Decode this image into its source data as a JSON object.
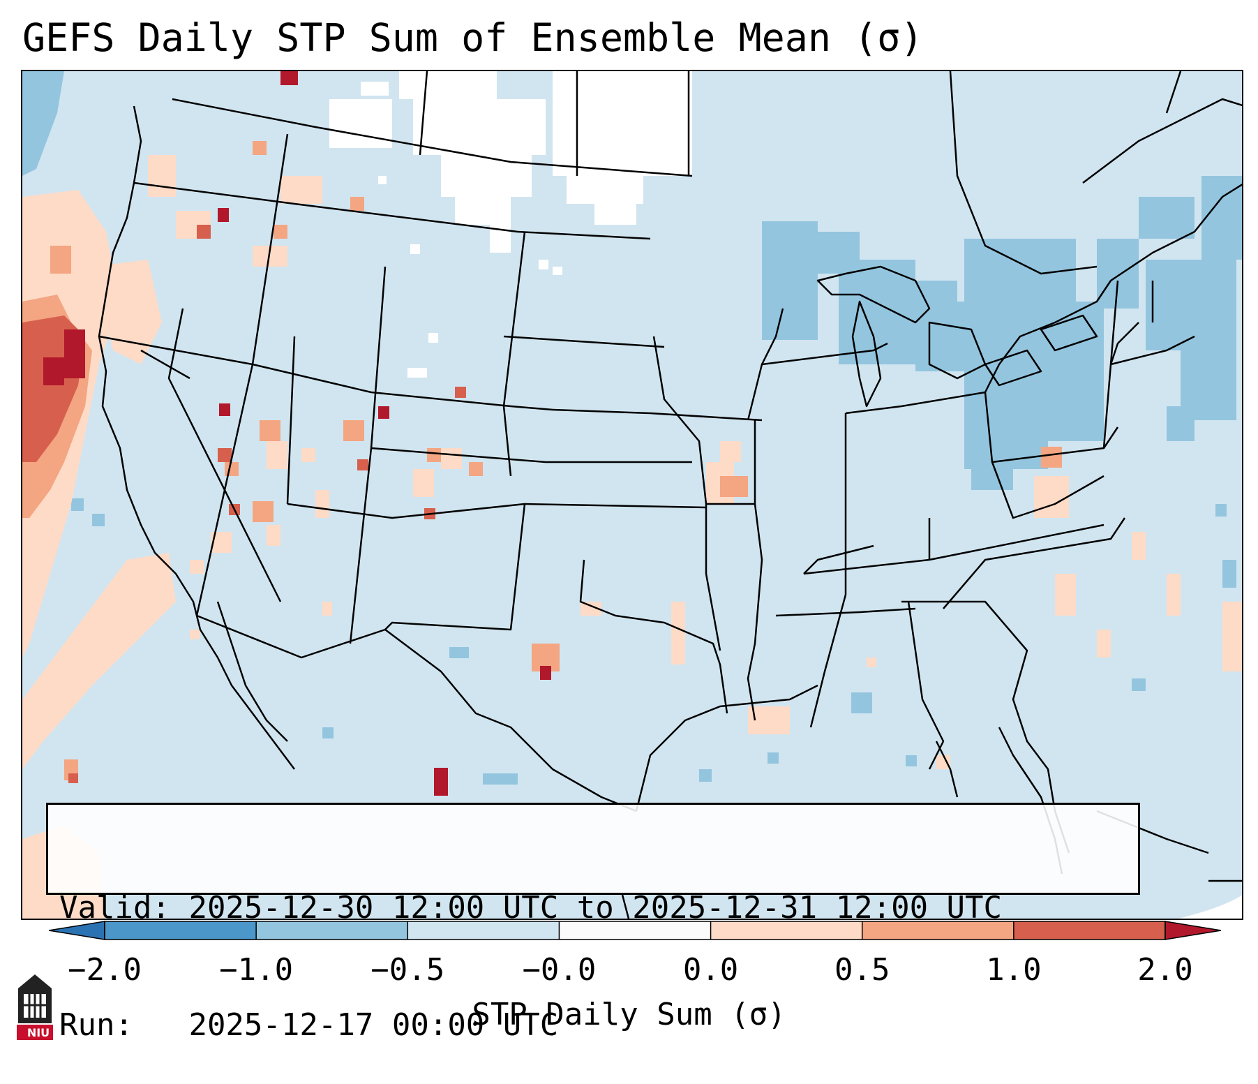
{
  "title": "GEFS Daily STP Sum of Ensemble Mean (σ)",
  "info": {
    "valid_label": "Valid:",
    "valid_value": "2025-12-30 12:00 UTC to 2025-12-31 12:00 UTC",
    "run_label": "Run:",
    "run_value": "2025-12-17 00:00 UTC"
  },
  "colorbar": {
    "label": "STP Daily Sum (σ)",
    "ticks": [
      "−2.0",
      "−1.0",
      "−0.5",
      "−0.0",
      "0.0",
      "0.5",
      "1.0",
      "2.0"
    ],
    "colors": [
      "#2a72b2",
      "#4b97c9",
      "#94c5df",
      "#d1e5f0",
      "#fbfbfb",
      "#fddbc7",
      "#f4a582",
      "#d6604d",
      "#b2182b"
    ],
    "extend": "both"
  },
  "map": {
    "region": "Continental United States",
    "background_value_color": "#d1e5f0",
    "no_data_color": "#ffffff",
    "state_boundary_color": "#000000"
  },
  "logo": {
    "text": "NIU"
  }
}
